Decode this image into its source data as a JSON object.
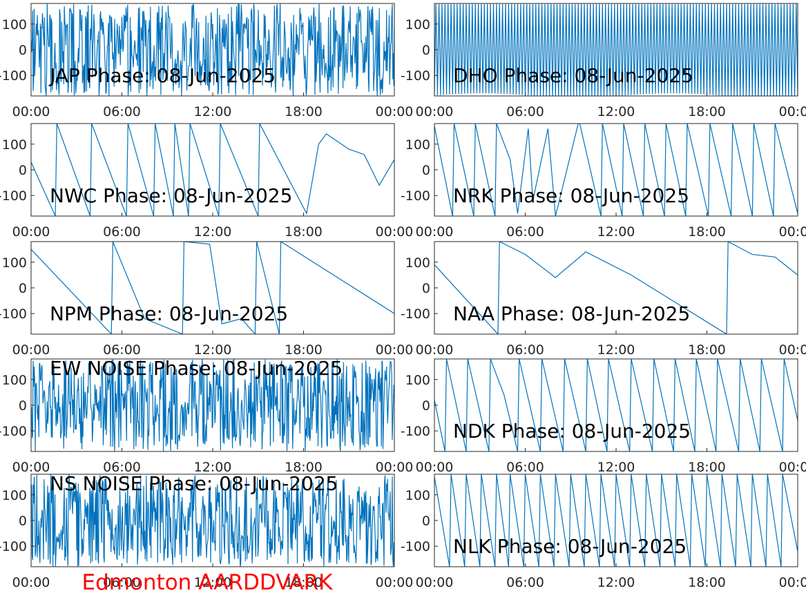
{
  "figure": {
    "footer_title": "Edmonton AARDDVARK",
    "footer_color": "#ff0000",
    "line_color": "#0072bd",
    "axis_color": "#262626"
  },
  "chart_data": [
    {
      "type": "line",
      "title": "JAP Phase: 08-Jun-2025",
      "pattern": "noise",
      "x_ticks": [
        "00:00",
        "06:00",
        "12:00",
        "18:00",
        "00:00"
      ],
      "y_ticks": [
        100,
        0,
        -100
      ],
      "ylim": [
        -180,
        180
      ],
      "series": [
        {
          "x_hours": [
            0,
            24
          ],
          "y": [
            0,
            0
          ]
        }
      ]
    },
    {
      "type": "line",
      "title": "DHO Phase: 08-Jun-2025",
      "pattern": "fast-wrap",
      "x_ticks": [
        "00:00",
        "06:00",
        "12:00",
        "18:00",
        "00:00"
      ],
      "y_ticks": [
        100,
        0,
        -100
      ],
      "ylim": [
        -180,
        180
      ],
      "series": [
        {
          "x_hours": [
            0,
            24
          ],
          "y": [
            0,
            0
          ]
        }
      ]
    },
    {
      "type": "line",
      "title": "NWC Phase: 08-Jun-2025",
      "pattern": "wrap",
      "x_ticks": [
        "00:00",
        "06:00",
        "12:00",
        "18:00",
        "00:00"
      ],
      "y_ticks": [
        100,
        0,
        -100
      ],
      "ylim": [
        -180,
        180
      ],
      "series": [
        {
          "x_hours": [
            0,
            1.6,
            1.7,
            3.9,
            4.0,
            6.3,
            6.4,
            8.1,
            8.2,
            9.4,
            9.5,
            10.4,
            10.5,
            12.4,
            12.5,
            15.0,
            15.1,
            18.2,
            19.0,
            19.5,
            20.0,
            21.0,
            22.0,
            23.0,
            24.0
          ],
          "y": [
            30,
            -180,
            180,
            -180,
            180,
            -180,
            180,
            -180,
            180,
            -180,
            180,
            -180,
            180,
            -180,
            180,
            -180,
            180,
            -170,
            100,
            140,
            120,
            80,
            60,
            -60,
            40
          ]
        }
      ]
    },
    {
      "type": "line",
      "title": "NRK Phase: 08-Jun-2025",
      "pattern": "wrap",
      "x_ticks": [
        "00:00",
        "06:00",
        "12:00",
        "18:00",
        "00:00"
      ],
      "y_ticks": [
        100,
        0,
        -100
      ],
      "ylim": [
        -180,
        180
      ],
      "series": [
        {
          "x_hours": [
            0,
            1.2,
            1.3,
            2.6,
            2.7,
            4.0,
            4.1,
            5.0,
            5.5,
            6.2,
            6.5,
            7.5,
            8.0,
            9.5,
            9.6,
            11.0,
            11.1,
            12.4,
            12.5,
            13.8,
            13.9,
            15.2,
            15.3,
            16.6,
            16.7,
            18.1,
            18.2,
            19.6,
            19.7,
            21.0,
            21.1,
            22.4,
            22.5,
            24.0
          ],
          "y": [
            170,
            -180,
            180,
            -180,
            180,
            -180,
            180,
            40,
            -170,
            160,
            -120,
            160,
            -180,
            180,
            180,
            -180,
            180,
            -180,
            180,
            -180,
            180,
            -180,
            180,
            -180,
            180,
            -180,
            180,
            -180,
            180,
            -180,
            180,
            -180,
            180,
            -170
          ]
        }
      ]
    },
    {
      "type": "line",
      "title": "NPM Phase: 08-Jun-2025",
      "pattern": "wrap",
      "x_ticks": [
        "00:00",
        "06:00",
        "12:00",
        "18:00",
        "00:00"
      ],
      "y_ticks": [
        100,
        0,
        -100
      ],
      "ylim": [
        -180,
        180
      ],
      "series": [
        {
          "x_hours": [
            0,
            5.3,
            5.4,
            7.5,
            10.0,
            10.1,
            11.8,
            12.6,
            13.9,
            14.8,
            14.9,
            16.4,
            16.5,
            24.0
          ],
          "y": [
            150,
            -180,
            180,
            -120,
            -180,
            180,
            170,
            -140,
            -120,
            -180,
            180,
            -180,
            180,
            -100
          ]
        }
      ]
    },
    {
      "type": "line",
      "title": "NAA Phase: 08-Jun-2025",
      "pattern": "wrap",
      "x_ticks": [
        "00:00",
        "06:00",
        "12:00",
        "18:00",
        "00:00"
      ],
      "y_ticks": [
        100,
        0,
        -100
      ],
      "ylim": [
        -180,
        180
      ],
      "series": [
        {
          "x_hours": [
            0,
            4.2,
            4.3,
            6.0,
            8.0,
            10.0,
            13.0,
            16.0,
            19.3,
            19.4,
            21.0,
            22.5,
            24.0
          ],
          "y": [
            90,
            -180,
            180,
            130,
            40,
            140,
            50,
            -60,
            -180,
            180,
            130,
            120,
            50
          ]
        }
      ]
    },
    {
      "type": "line",
      "title": "EW NOISE Phase: 08-Jun-2025",
      "pattern": "noise",
      "x_ticks": [
        "00:00",
        "06:00",
        "12:00",
        "18:00",
        "00:00"
      ],
      "y_ticks": [
        100,
        0,
        -100
      ],
      "ylim": [
        -180,
        180
      ],
      "series": [
        {
          "x_hours": [
            0,
            24
          ],
          "y": [
            0,
            0
          ]
        }
      ]
    },
    {
      "type": "line",
      "title": "NDK Phase: 08-Jun-2025",
      "pattern": "wrap",
      "x_ticks": [
        "00:00",
        "06:00",
        "12:00",
        "18:00",
        "00:00"
      ],
      "y_ticks": [
        100,
        0,
        -100
      ],
      "ylim": [
        -180,
        180
      ],
      "series": [
        {
          "x_hours": [
            0,
            0.7,
            0.8,
            2.1,
            2.2,
            3.6,
            3.7,
            4.6,
            5.5,
            5.6,
            7.0,
            7.1,
            8.5,
            8.6,
            10.0,
            10.1,
            11.4,
            11.5,
            12.9,
            13.0,
            14.4,
            14.5,
            15.8,
            15.9,
            17.2,
            17.3,
            18.6,
            18.7,
            20.1,
            20.2,
            21.5,
            21.6,
            23.0,
            23.1,
            24.0
          ],
          "y": [
            20,
            -180,
            180,
            -180,
            180,
            -180,
            180,
            40,
            -180,
            180,
            -180,
            180,
            -180,
            180,
            -180,
            180,
            -180,
            180,
            -180,
            180,
            -180,
            180,
            -180,
            180,
            -180,
            180,
            -180,
            180,
            -180,
            180,
            -180,
            180,
            -180,
            180,
            -60
          ]
        }
      ]
    },
    {
      "type": "line",
      "title": "NS NOISE Phase: 08-Jun-2025",
      "pattern": "noise",
      "x_ticks": [
        "00:00",
        "06:00",
        "12:00",
        "18:00",
        "00:00"
      ],
      "y_ticks": [
        100,
        0,
        -100
      ],
      "ylim": [
        -180,
        180
      ],
      "series": [
        {
          "x_hours": [
            0,
            24
          ],
          "y": [
            0,
            0
          ]
        }
      ]
    },
    {
      "type": "line",
      "title": "NLK Phase: 08-Jun-2025",
      "pattern": "wrap",
      "x_ticks": [
        "00:00",
        "06:00",
        "12:00",
        "18:00",
        "00:00"
      ],
      "y_ticks": [
        100,
        0,
        -100
      ],
      "ylim": [
        -180,
        180
      ],
      "series": [
        {
          "x_hours": [
            0,
            1.0,
            1.1,
            2.0,
            2.1,
            3.0,
            3.1,
            4.0,
            4.1,
            4.9,
            5.0,
            5.9,
            6.0,
            6.9,
            7.0,
            7.9,
            8.0,
            8.9,
            9.0,
            9.9,
            10.0,
            10.9,
            11.0,
            11.9,
            12.0,
            12.9,
            13.0,
            13.9,
            14.0,
            14.9,
            15.0,
            15.9,
            16.0,
            16.9,
            17.0,
            17.9,
            18.0,
            18.9,
            19.0,
            19.9,
            20.0,
            20.9,
            21.0,
            21.9,
            22.0,
            22.9,
            23.0,
            24.0
          ],
          "y": [
            170,
            -180,
            180,
            -180,
            180,
            -180,
            180,
            -180,
            180,
            -180,
            180,
            -180,
            180,
            -180,
            180,
            -180,
            180,
            -180,
            180,
            -180,
            180,
            -180,
            180,
            -180,
            180,
            -180,
            180,
            -180,
            180,
            -180,
            180,
            -180,
            180,
            -180,
            180,
            -180,
            180,
            -180,
            180,
            -180,
            180,
            -180,
            180,
            -180,
            180,
            -180,
            180,
            -120
          ]
        }
      ]
    }
  ]
}
